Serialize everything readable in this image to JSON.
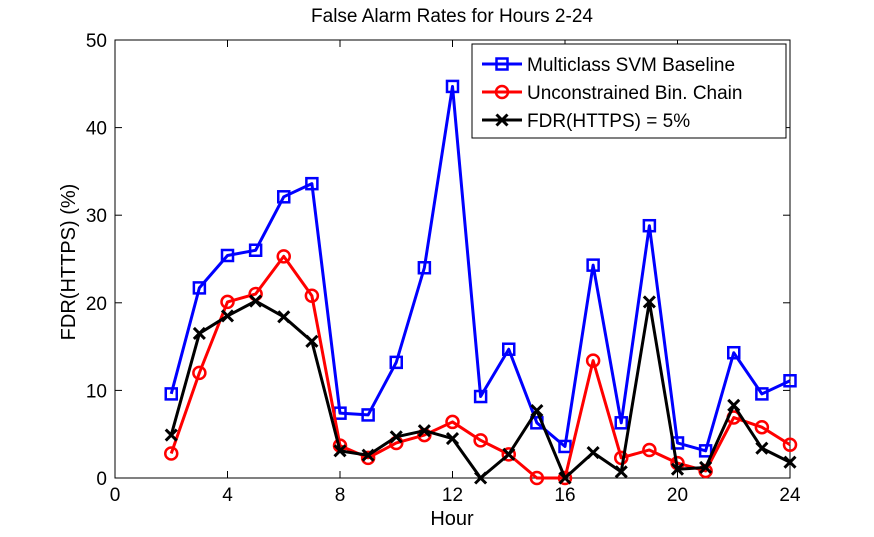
{
  "chart_data": {
    "type": "line",
    "title": "False Alarm Rates for Hours 2-24",
    "xlabel": "Hour",
    "ylabel": "FDR(HTTPS) (%)",
    "xlim": [
      0,
      24
    ],
    "ylim": [
      0,
      50
    ],
    "xticks": [
      "0",
      "4",
      "8",
      "12",
      "16",
      "20",
      "24"
    ],
    "yticks": [
      "0",
      "10",
      "20",
      "30",
      "40",
      "50"
    ],
    "grid": false,
    "legend_position": "top-right",
    "x": [
      2,
      3,
      4,
      5,
      6,
      7,
      8,
      9,
      10,
      11,
      12,
      13,
      14,
      15,
      16,
      17,
      18,
      19,
      20,
      21,
      22,
      23,
      24
    ],
    "series": [
      {
        "name": "Multiclass SVM Baseline",
        "color": "#0000ff",
        "marker": "square",
        "values": [
          9.6,
          21.7,
          25.4,
          26.0,
          32.1,
          33.6,
          7.4,
          7.2,
          13.2,
          24.0,
          44.7,
          9.3,
          14.7,
          6.3,
          3.6,
          24.3,
          6.3,
          28.8,
          4.0,
          3.1,
          14.3,
          9.6,
          11.1
        ]
      },
      {
        "name": "Unconstrained Bin. Chain",
        "color": "#ff0000",
        "marker": "circle",
        "values": [
          2.8,
          12.0,
          20.1,
          21.0,
          25.3,
          20.8,
          3.7,
          2.3,
          4.0,
          4.9,
          6.4,
          4.3,
          2.7,
          0.0,
          0.0,
          13.4,
          2.3,
          3.2,
          1.7,
          0.8,
          6.9,
          5.8,
          3.8
        ]
      },
      {
        "name": "FDR(HTTPS) = 5%",
        "color": "#000000",
        "marker": "x",
        "values": [
          4.9,
          16.5,
          18.5,
          20.2,
          18.4,
          15.6,
          3.1,
          2.6,
          4.7,
          5.4,
          4.5,
          0.0,
          2.7,
          7.7,
          0.0,
          2.9,
          0.7,
          20.1,
          1.0,
          1.2,
          8.3,
          3.4,
          1.8
        ]
      }
    ]
  }
}
